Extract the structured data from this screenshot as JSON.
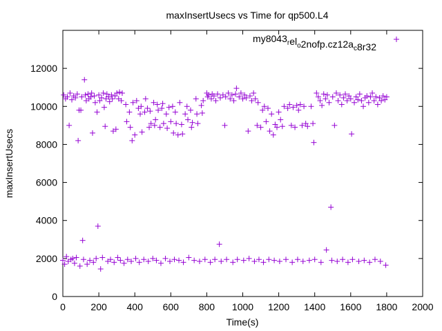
{
  "chart_data": {
    "type": "scatter",
    "title": "maxInsertUsecs vs Time for qp500.L4",
    "xlabel": "Time(s)",
    "ylabel": "maxInsertUsecs",
    "xlim": [
      0,
      2000
    ],
    "ylim": [
      0,
      14000
    ],
    "x_ticks": [
      0,
      200,
      400,
      600,
      800,
      1000,
      1200,
      1400,
      1600,
      1800,
      2000
    ],
    "y_ticks": [
      0,
      2000,
      4000,
      6000,
      8000,
      10000,
      12000
    ],
    "grid": false,
    "legend_position": "top-right",
    "marker": "plus",
    "series_color": "#9400d3",
    "series": [
      {
        "name": "my8043_rel_o2nofp.cz12a_c8r32",
        "legend": {
          "parts": [
            {
              "text": "my8043",
              "sub": false
            },
            {
              "text": "r",
              "sub": true
            },
            {
              "text": "el",
              "sub": false
            },
            {
              "text": "o",
              "sub": true
            },
            {
              "text": "2nofp.cz12a",
              "sub": false
            },
            {
              "text": "c",
              "sub": true
            },
            {
              "text": "8r32",
              "sub": false
            }
          ]
        },
        "points": [
          [
            0,
            1900
          ],
          [
            5,
            10600
          ],
          [
            10,
            1700
          ],
          [
            15,
            10400
          ],
          [
            20,
            2100
          ],
          [
            25,
            10500
          ],
          [
            30,
            1850
          ],
          [
            35,
            9000
          ],
          [
            40,
            10700
          ],
          [
            45,
            1950
          ],
          [
            50,
            10350
          ],
          [
            55,
            2000
          ],
          [
            60,
            10550
          ],
          [
            65,
            1750
          ],
          [
            70,
            10450
          ],
          [
            75,
            2050
          ],
          [
            80,
            10650
          ],
          [
            85,
            8200
          ],
          [
            90,
            9800
          ],
          [
            95,
            1600
          ],
          [
            100,
            9800
          ],
          [
            105,
            10500
          ],
          [
            110,
            2950
          ],
          [
            115,
            1950
          ],
          [
            120,
            11400
          ],
          [
            125,
            10600
          ],
          [
            130,
            10300
          ],
          [
            135,
            1700
          ],
          [
            140,
            10650
          ],
          [
            145,
            10400
          ],
          [
            150,
            1900
          ],
          [
            155,
            10500
          ],
          [
            160,
            10700
          ],
          [
            165,
            8600
          ],
          [
            170,
            1800
          ],
          [
            175,
            10550
          ],
          [
            180,
            10200
          ],
          [
            185,
            2000
          ],
          [
            190,
            9700
          ],
          [
            195,
            3700
          ],
          [
            200,
            10600
          ],
          [
            205,
            10300
          ],
          [
            210,
            1450
          ],
          [
            215,
            10450
          ],
          [
            220,
            2050
          ],
          [
            225,
            10700
          ],
          [
            230,
            9950
          ],
          [
            235,
            8950
          ],
          [
            240,
            10400
          ],
          [
            245,
            10650
          ],
          [
            250,
            1850
          ],
          [
            255,
            10500
          ],
          [
            260,
            10250
          ],
          [
            265,
            1950
          ],
          [
            270,
            10600
          ],
          [
            275,
            10400
          ],
          [
            280,
            8700
          ],
          [
            285,
            1800
          ],
          [
            290,
            10550
          ],
          [
            295,
            8800
          ],
          [
            300,
            10700
          ],
          [
            305,
            2050
          ],
          [
            310,
            10400
          ],
          [
            315,
            10750
          ],
          [
            320,
            1900
          ],
          [
            325,
            10300
          ],
          [
            330,
            10700
          ],
          [
            340,
            1750
          ],
          [
            350,
            10100
          ],
          [
            355,
            9200
          ],
          [
            360,
            1950
          ],
          [
            370,
            9700
          ],
          [
            375,
            8900
          ],
          [
            380,
            1850
          ],
          [
            385,
            8200
          ],
          [
            390,
            10200
          ],
          [
            400,
            8500
          ],
          [
            405,
            2000
          ],
          [
            410,
            10300
          ],
          [
            420,
            9900
          ],
          [
            425,
            1800
          ],
          [
            430,
            9600
          ],
          [
            435,
            10000
          ],
          [
            440,
            8650
          ],
          [
            450,
            1950
          ],
          [
            455,
            9700
          ],
          [
            460,
            10400
          ],
          [
            470,
            9900
          ],
          [
            475,
            1850
          ],
          [
            480,
            8900
          ],
          [
            485,
            9750
          ],
          [
            490,
            9100
          ],
          [
            500,
            2000
          ],
          [
            505,
            10200
          ],
          [
            510,
            9000
          ],
          [
            515,
            9300
          ],
          [
            520,
            1900
          ],
          [
            525,
            10100
          ],
          [
            530,
            9800
          ],
          [
            540,
            8900
          ],
          [
            545,
            1750
          ],
          [
            550,
            9900
          ],
          [
            555,
            10150
          ],
          [
            560,
            9100
          ],
          [
            570,
            2000
          ],
          [
            575,
            9600
          ],
          [
            580,
            8850
          ],
          [
            590,
            9950
          ],
          [
            595,
            1850
          ],
          [
            600,
            9200
          ],
          [
            610,
            10000
          ],
          [
            615,
            8600
          ],
          [
            620,
            1950
          ],
          [
            625,
            9700
          ],
          [
            630,
            9100
          ],
          [
            640,
            8500
          ],
          [
            645,
            1900
          ],
          [
            650,
            10200
          ],
          [
            660,
            9050
          ],
          [
            665,
            8550
          ],
          [
            670,
            1800
          ],
          [
            680,
            9600
          ],
          [
            690,
            10000
          ],
          [
            695,
            9300
          ],
          [
            700,
            2050
          ],
          [
            710,
            9800
          ],
          [
            715,
            8900
          ],
          [
            720,
            9150
          ],
          [
            730,
            1900
          ],
          [
            740,
            10400
          ],
          [
            745,
            9600
          ],
          [
            750,
            9100
          ],
          [
            760,
            1850
          ],
          [
            770,
            10050
          ],
          [
            775,
            9650
          ],
          [
            780,
            10300
          ],
          [
            790,
            1950
          ],
          [
            800,
            10700
          ],
          [
            805,
            10500
          ],
          [
            810,
            10600
          ],
          [
            820,
            1800
          ],
          [
            825,
            10400
          ],
          [
            830,
            10650
          ],
          [
            840,
            10550
          ],
          [
            845,
            1950
          ],
          [
            850,
            10300
          ],
          [
            860,
            10650
          ],
          [
            870,
            2750
          ],
          [
            875,
            10450
          ],
          [
            880,
            1850
          ],
          [
            890,
            10600
          ],
          [
            900,
            9000
          ],
          [
            905,
            10500
          ],
          [
            910,
            1950
          ],
          [
            920,
            10700
          ],
          [
            930,
            10400
          ],
          [
            940,
            10600
          ],
          [
            945,
            1800
          ],
          [
            950,
            10300
          ],
          [
            960,
            10650
          ],
          [
            965,
            10950
          ],
          [
            970,
            1950
          ],
          [
            980,
            10500
          ],
          [
            990,
            10700
          ],
          [
            1000,
            10400
          ],
          [
            1005,
            1900
          ],
          [
            1010,
            10600
          ],
          [
            1020,
            10450
          ],
          [
            1030,
            8700
          ],
          [
            1035,
            2000
          ],
          [
            1040,
            10550
          ],
          [
            1050,
            10300
          ],
          [
            1060,
            10700
          ],
          [
            1065,
            1850
          ],
          [
            1070,
            10400
          ],
          [
            1080,
            9000
          ],
          [
            1085,
            10200
          ],
          [
            1090,
            1950
          ],
          [
            1100,
            8900
          ],
          [
            1110,
            9800
          ],
          [
            1115,
            1800
          ],
          [
            1120,
            10000
          ],
          [
            1130,
            9200
          ],
          [
            1140,
            9900
          ],
          [
            1145,
            1950
          ],
          [
            1150,
            8700
          ],
          [
            1160,
            9600
          ],
          [
            1170,
            8500
          ],
          [
            1175,
            1900
          ],
          [
            1180,
            9050
          ],
          [
            1190,
            8900
          ],
          [
            1200,
            9700
          ],
          [
            1205,
            1850
          ],
          [
            1210,
            9300
          ],
          [
            1220,
            8950
          ],
          [
            1230,
            10000
          ],
          [
            1240,
            1950
          ],
          [
            1250,
            9900
          ],
          [
            1260,
            10100
          ],
          [
            1270,
            9000
          ],
          [
            1275,
            1800
          ],
          [
            1280,
            9950
          ],
          [
            1290,
            8900
          ],
          [
            1300,
            10050
          ],
          [
            1305,
            1950
          ],
          [
            1310,
            9800
          ],
          [
            1320,
            10100
          ],
          [
            1330,
            9000
          ],
          [
            1335,
            1850
          ],
          [
            1340,
            10000
          ],
          [
            1350,
            9100
          ],
          [
            1360,
            8950
          ],
          [
            1370,
            1900
          ],
          [
            1380,
            10000
          ],
          [
            1390,
            9100
          ],
          [
            1395,
            8100
          ],
          [
            1400,
            1950
          ],
          [
            1410,
            10700
          ],
          [
            1420,
            10500
          ],
          [
            1430,
            10300
          ],
          [
            1435,
            1800
          ],
          [
            1440,
            10050
          ],
          [
            1450,
            10650
          ],
          [
            1460,
            10400
          ],
          [
            1465,
            2450
          ],
          [
            1470,
            10600
          ],
          [
            1480,
            10200
          ],
          [
            1490,
            4700
          ],
          [
            1495,
            1900
          ],
          [
            1500,
            10500
          ],
          [
            1510,
            9000
          ],
          [
            1520,
            10700
          ],
          [
            1525,
            1850
          ],
          [
            1530,
            10300
          ],
          [
            1540,
            10600
          ],
          [
            1550,
            10100
          ],
          [
            1555,
            1950
          ],
          [
            1560,
            10450
          ],
          [
            1570,
            10650
          ],
          [
            1580,
            10300
          ],
          [
            1585,
            1800
          ],
          [
            1590,
            10550
          ],
          [
            1600,
            10400
          ],
          [
            1605,
            8550
          ],
          [
            1610,
            1950
          ],
          [
            1620,
            10200
          ],
          [
            1630,
            10500
          ],
          [
            1640,
            10350
          ],
          [
            1645,
            1850
          ],
          [
            1650,
            10650
          ],
          [
            1660,
            10300
          ],
          [
            1670,
            10000
          ],
          [
            1675,
            1900
          ],
          [
            1680,
            10450
          ],
          [
            1690,
            10550
          ],
          [
            1700,
            10200
          ],
          [
            1705,
            1800
          ],
          [
            1710,
            10500
          ],
          [
            1720,
            10700
          ],
          [
            1730,
            10300
          ],
          [
            1735,
            1950
          ],
          [
            1740,
            10500
          ],
          [
            1750,
            10100
          ],
          [
            1760,
            10450
          ],
          [
            1765,
            1850
          ],
          [
            1770,
            10300
          ],
          [
            1780,
            10550
          ],
          [
            1790,
            10350
          ],
          [
            1795,
            1650
          ],
          [
            1800,
            10500
          ]
        ]
      }
    ]
  }
}
